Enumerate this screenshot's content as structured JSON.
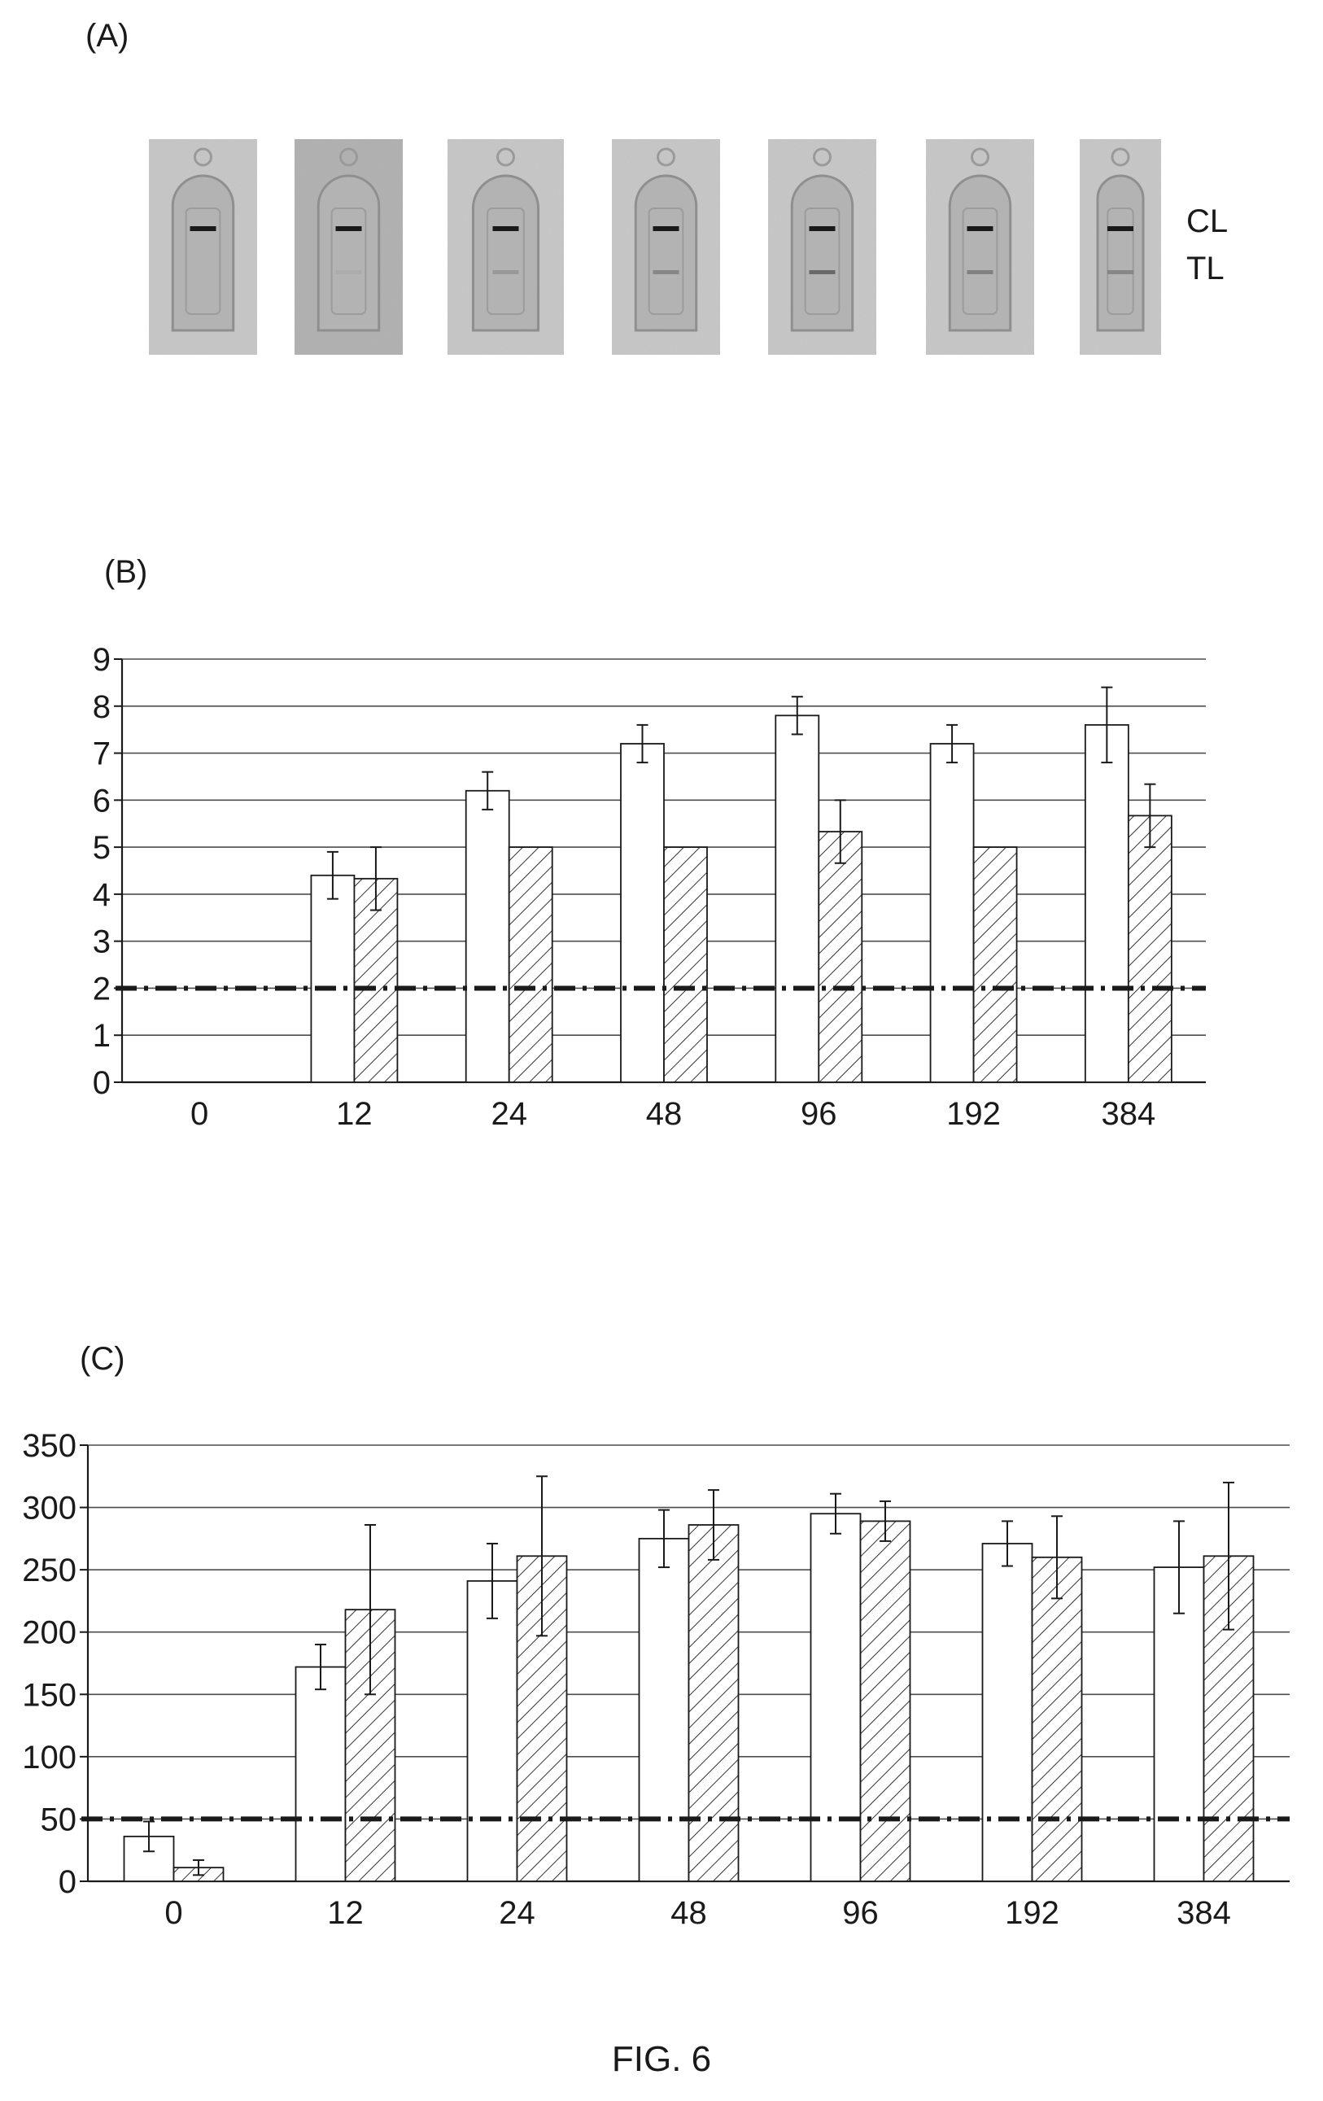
{
  "figure_caption": "FIG. 6",
  "panel_a": {
    "label": "(A)",
    "strip_count": 7,
    "line_labels": [
      "CL",
      "TL"
    ],
    "test_line_intensity": [
      0.0,
      0.12,
      0.35,
      0.5,
      0.78,
      0.55,
      0.5
    ]
  },
  "chart_data": [
    {
      "type": "bar",
      "panel": "(B)",
      "title": "",
      "xlabel": "",
      "ylabel": "",
      "categories": [
        "0",
        "12",
        "24",
        "48",
        "96",
        "192",
        "384"
      ],
      "series": [
        {
          "fill": "open",
          "values": [
            0,
            4.4,
            6.2,
            7.2,
            7.8,
            7.2,
            7.6
          ],
          "errors": [
            0,
            0.5,
            0.4,
            0.4,
            0.4,
            0.4,
            0.8
          ]
        },
        {
          "fill": "hatched",
          "values": [
            0,
            4.33,
            5.0,
            5.0,
            5.33,
            5.0,
            5.67
          ],
          "errors": [
            0,
            0.67,
            0,
            0,
            0.67,
            0,
            0.67
          ]
        }
      ],
      "ylim": [
        0,
        9
      ],
      "yticks": [
        0,
        1,
        2,
        3,
        4,
        5,
        6,
        7,
        8,
        9
      ],
      "threshold": 2,
      "grid": true,
      "legend": "none"
    },
    {
      "type": "bar",
      "panel": "(C)",
      "title": "",
      "xlabel": "",
      "ylabel": "",
      "categories": [
        "0",
        "12",
        "24",
        "48",
        "96",
        "192",
        "384"
      ],
      "series": [
        {
          "fill": "open",
          "values": [
            36,
            172,
            241,
            275,
            295,
            271,
            252
          ],
          "errors": [
            12,
            18,
            30,
            23,
            16,
            18,
            37
          ]
        },
        {
          "fill": "hatched",
          "values": [
            11,
            218,
            261,
            286,
            289,
            260,
            261
          ],
          "errors": [
            6,
            68,
            64,
            28,
            16,
            33,
            59
          ]
        }
      ],
      "ylim": [
        0,
        350
      ],
      "yticks": [
        0,
        50,
        100,
        150,
        200,
        250,
        300,
        350
      ],
      "threshold": 50,
      "grid": true,
      "legend": "none"
    }
  ],
  "colors": {
    "ink": "#1a1a1a",
    "grid": "#4d4d4d",
    "bar_fill": "#ffffff",
    "strip_bg": "#c9c9c9",
    "strip_window": "#b3b3b3",
    "control_line": "#1a1a1a"
  }
}
